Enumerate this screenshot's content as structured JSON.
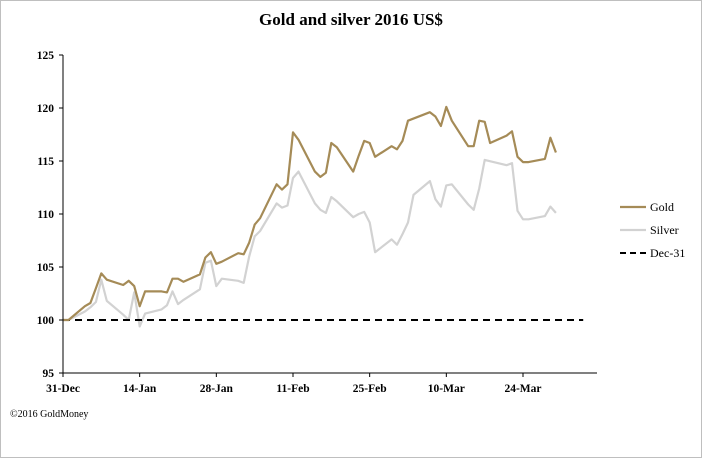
{
  "footnote": "©2016 GoldMoney",
  "chart_data": {
    "type": "line",
    "title": "Gold and silver 2016 US$",
    "xlabel": "",
    "ylabel": "",
    "ylim": [
      95,
      125
    ],
    "yticks": [
      95,
      100,
      105,
      110,
      115,
      120,
      125
    ],
    "xlim": [
      "2015-12-31",
      "2016-04-04"
    ],
    "xticks": [
      {
        "date": "2015-12-31",
        "label": "31-Dec"
      },
      {
        "date": "2016-01-14",
        "label": "14-Jan"
      },
      {
        "date": "2016-01-28",
        "label": "28-Jan"
      },
      {
        "date": "2016-02-11",
        "label": "11-Feb"
      },
      {
        "date": "2016-02-25",
        "label": "25-Feb"
      },
      {
        "date": "2016-03-10",
        "label": "10-Mar"
      },
      {
        "date": "2016-03-24",
        "label": "24-Mar"
      }
    ],
    "grid": false,
    "legend_position": "right",
    "series": [
      {
        "name": "Gold",
        "color": "#a58b57",
        "style": "solid",
        "points": [
          [
            "2015-12-31",
            100.0
          ],
          [
            "2016-01-01",
            100.0
          ],
          [
            "2016-01-04",
            101.3
          ],
          [
            "2016-01-05",
            101.6
          ],
          [
            "2016-01-06",
            103.0
          ],
          [
            "2016-01-07",
            104.4
          ],
          [
            "2016-01-08",
            103.8
          ],
          [
            "2016-01-11",
            103.3
          ],
          [
            "2016-01-12",
            103.7
          ],
          [
            "2016-01-13",
            103.2
          ],
          [
            "2016-01-14",
            101.3
          ],
          [
            "2016-01-15",
            102.7
          ],
          [
            "2016-01-18",
            102.7
          ],
          [
            "2016-01-19",
            102.6
          ],
          [
            "2016-01-20",
            103.9
          ],
          [
            "2016-01-21",
            103.9
          ],
          [
            "2016-01-22",
            103.6
          ],
          [
            "2016-01-25",
            104.3
          ],
          [
            "2016-01-26",
            105.9
          ],
          [
            "2016-01-27",
            106.4
          ],
          [
            "2016-01-28",
            105.3
          ],
          [
            "2016-01-29",
            105.5
          ],
          [
            "2016-02-01",
            106.3
          ],
          [
            "2016-02-02",
            106.2
          ],
          [
            "2016-02-03",
            107.3
          ],
          [
            "2016-02-04",
            109.0
          ],
          [
            "2016-02-05",
            109.6
          ],
          [
            "2016-02-08",
            112.8
          ],
          [
            "2016-02-09",
            112.3
          ],
          [
            "2016-02-10",
            112.8
          ],
          [
            "2016-02-11",
            117.7
          ],
          [
            "2016-02-12",
            117.0
          ],
          [
            "2016-02-15",
            114.0
          ],
          [
            "2016-02-16",
            113.5
          ],
          [
            "2016-02-17",
            113.9
          ],
          [
            "2016-02-18",
            116.7
          ],
          [
            "2016-02-19",
            116.3
          ],
          [
            "2016-02-22",
            114.0
          ],
          [
            "2016-02-23",
            115.5
          ],
          [
            "2016-02-24",
            116.9
          ],
          [
            "2016-02-25",
            116.7
          ],
          [
            "2016-02-26",
            115.4
          ],
          [
            "2016-02-29",
            116.4
          ],
          [
            "2016-03-01",
            116.1
          ],
          [
            "2016-03-02",
            116.9
          ],
          [
            "2016-03-03",
            118.8
          ],
          [
            "2016-03-07",
            119.6
          ],
          [
            "2016-03-08",
            119.2
          ],
          [
            "2016-03-09",
            118.3
          ],
          [
            "2016-03-10",
            120.1
          ],
          [
            "2016-03-11",
            118.8
          ],
          [
            "2016-03-14",
            116.4
          ],
          [
            "2016-03-15",
            116.4
          ],
          [
            "2016-03-16",
            118.8
          ],
          [
            "2016-03-17",
            118.7
          ],
          [
            "2016-03-18",
            116.7
          ],
          [
            "2016-03-21",
            117.4
          ],
          [
            "2016-03-22",
            117.8
          ],
          [
            "2016-03-23",
            115.4
          ],
          [
            "2016-03-24",
            114.9
          ],
          [
            "2016-03-25",
            114.9
          ],
          [
            "2016-03-28",
            115.2
          ],
          [
            "2016-03-29",
            117.2
          ],
          [
            "2016-03-30",
            115.8
          ]
        ]
      },
      {
        "name": "Silver",
        "color": "#d2d2d2",
        "style": "solid",
        "points": [
          [
            "2015-12-31",
            100.0
          ],
          [
            "2016-01-01",
            100.0
          ],
          [
            "2016-01-04",
            100.8
          ],
          [
            "2016-01-05",
            101.2
          ],
          [
            "2016-01-06",
            101.7
          ],
          [
            "2016-01-07",
            103.8
          ],
          [
            "2016-01-08",
            101.8
          ],
          [
            "2016-01-11",
            100.5
          ],
          [
            "2016-01-12",
            100.0
          ],
          [
            "2016-01-13",
            102.6
          ],
          [
            "2016-01-14",
            99.4
          ],
          [
            "2016-01-15",
            100.6
          ],
          [
            "2016-01-18",
            101.0
          ],
          [
            "2016-01-19",
            101.4
          ],
          [
            "2016-01-20",
            102.7
          ],
          [
            "2016-01-21",
            101.5
          ],
          [
            "2016-01-22",
            101.9
          ],
          [
            "2016-01-25",
            102.9
          ],
          [
            "2016-01-26",
            105.4
          ],
          [
            "2016-01-27",
            105.6
          ],
          [
            "2016-01-28",
            103.2
          ],
          [
            "2016-01-29",
            103.9
          ],
          [
            "2016-02-01",
            103.7
          ],
          [
            "2016-02-02",
            103.5
          ],
          [
            "2016-02-03",
            106.0
          ],
          [
            "2016-02-04",
            107.9
          ],
          [
            "2016-02-05",
            108.4
          ],
          [
            "2016-02-08",
            111.0
          ],
          [
            "2016-02-09",
            110.6
          ],
          [
            "2016-02-10",
            110.8
          ],
          [
            "2016-02-11",
            113.4
          ],
          [
            "2016-02-12",
            114.0
          ],
          [
            "2016-02-15",
            111.0
          ],
          [
            "2016-02-16",
            110.4
          ],
          [
            "2016-02-17",
            110.1
          ],
          [
            "2016-02-18",
            111.6
          ],
          [
            "2016-02-19",
            111.2
          ],
          [
            "2016-02-22",
            109.7
          ],
          [
            "2016-02-23",
            110.0
          ],
          [
            "2016-02-24",
            110.2
          ],
          [
            "2016-02-25",
            109.2
          ],
          [
            "2016-02-26",
            106.4
          ],
          [
            "2016-02-29",
            107.6
          ],
          [
            "2016-03-01",
            107.1
          ],
          [
            "2016-03-02",
            108.1
          ],
          [
            "2016-03-03",
            109.2
          ],
          [
            "2016-03-04",
            111.8
          ],
          [
            "2016-03-07",
            113.1
          ],
          [
            "2016-03-08",
            111.4
          ],
          [
            "2016-03-09",
            110.7
          ],
          [
            "2016-03-10",
            112.7
          ],
          [
            "2016-03-11",
            112.8
          ],
          [
            "2016-03-14",
            110.9
          ],
          [
            "2016-03-15",
            110.4
          ],
          [
            "2016-03-16",
            112.4
          ],
          [
            "2016-03-17",
            115.1
          ],
          [
            "2016-03-21",
            114.6
          ],
          [
            "2016-03-22",
            114.8
          ],
          [
            "2016-03-23",
            110.3
          ],
          [
            "2016-03-24",
            109.5
          ],
          [
            "2016-03-25",
            109.5
          ],
          [
            "2016-03-28",
            109.8
          ],
          [
            "2016-03-29",
            110.7
          ],
          [
            "2016-03-30",
            110.1
          ]
        ]
      },
      {
        "name": "Dec-31",
        "color": "#000000",
        "style": "dashed",
        "points": [
          [
            "2015-12-31",
            100.0
          ],
          [
            "2016-04-04",
            100.0
          ]
        ]
      }
    ]
  }
}
